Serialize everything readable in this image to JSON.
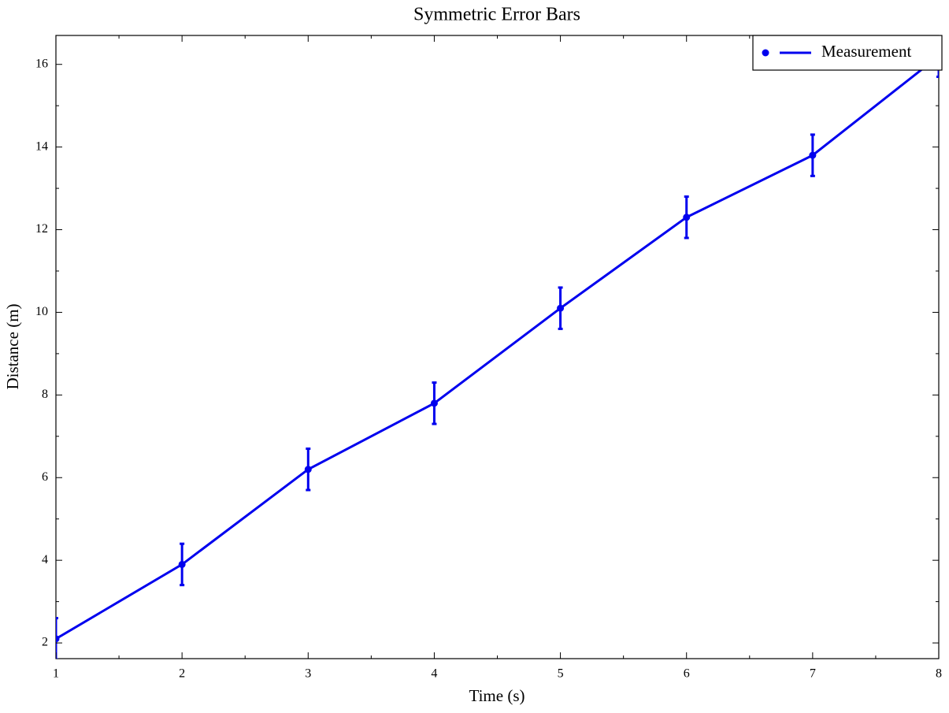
{
  "chart_data": {
    "type": "line",
    "title": "Symmetric Error Bars",
    "xlabel": "Time (s)",
    "ylabel": "Distance (m)",
    "x": [
      1,
      2,
      3,
      4,
      5,
      6,
      7,
      8
    ],
    "series": [
      {
        "name": "Measurement",
        "color": "#0000ee",
        "values": [
          2.1,
          3.9,
          6.2,
          7.8,
          10.1,
          12.3,
          13.8,
          16.2
        ],
        "errors": [
          0.5,
          0.5,
          0.5,
          0.5,
          0.5,
          0.5,
          0.5,
          0.5
        ]
      }
    ],
    "xlim": [
      1,
      8
    ],
    "ylim": [
      1.62,
      16.7
    ],
    "xticks": [
      1,
      2,
      3,
      4,
      5,
      6,
      7,
      8
    ],
    "yticks": [
      2,
      4,
      6,
      8,
      10,
      12,
      14,
      16
    ],
    "xminorticks": [
      1.5,
      2.5,
      3.5,
      4.5,
      5.5,
      6.5,
      7.5
    ],
    "yminorticks": [
      3,
      5,
      7,
      9,
      11,
      13,
      15
    ],
    "grid": false,
    "legend": "upper right"
  }
}
